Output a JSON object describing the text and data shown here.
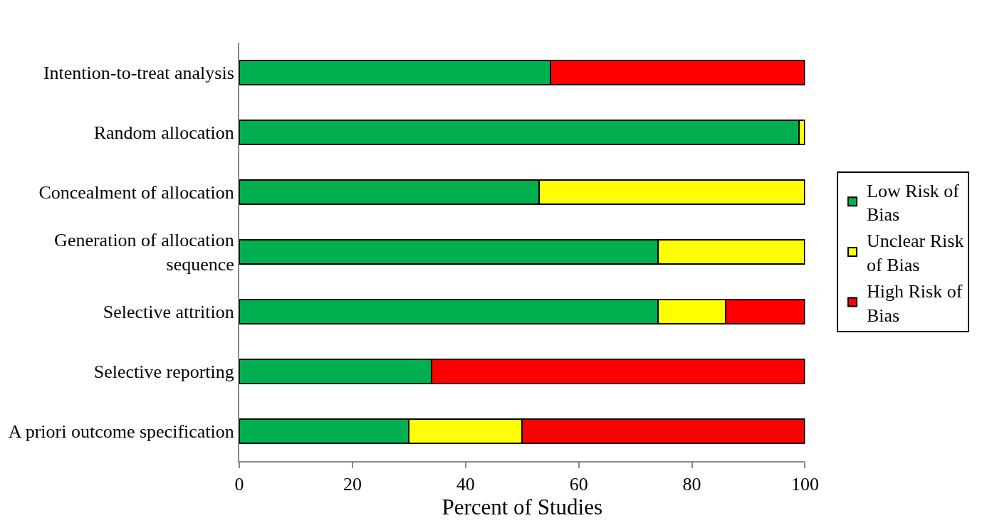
{
  "chart_data": {
    "type": "bar",
    "orientation": "horizontal",
    "stacked": true,
    "categories": [
      "Intention-to-treat analysis",
      "Random allocation",
      "Concealment of allocation",
      "Generation of allocation\nsequence",
      "Selective attrition",
      "Selective reporting",
      "A priori outcome specification"
    ],
    "series": [
      {
        "name": "Low Risk of\nBias",
        "color": "#00b050",
        "values": [
          55,
          99,
          53,
          74,
          74,
          34,
          30
        ]
      },
      {
        "name": "Unclear Risk\nof Bias",
        "color": "#ffff00",
        "values": [
          null,
          1,
          47,
          26,
          12,
          null,
          20
        ]
      },
      {
        "name": "High Risk of\nBias",
        "color": "#ff0000",
        "values": [
          45,
          null,
          null,
          null,
          14,
          66,
          50
        ]
      }
    ],
    "xlabel": "Percent of Studies",
    "xlim": [
      0,
      100
    ],
    "xticks": [
      0,
      20,
      40,
      60,
      80,
      100
    ],
    "legend": "right"
  }
}
